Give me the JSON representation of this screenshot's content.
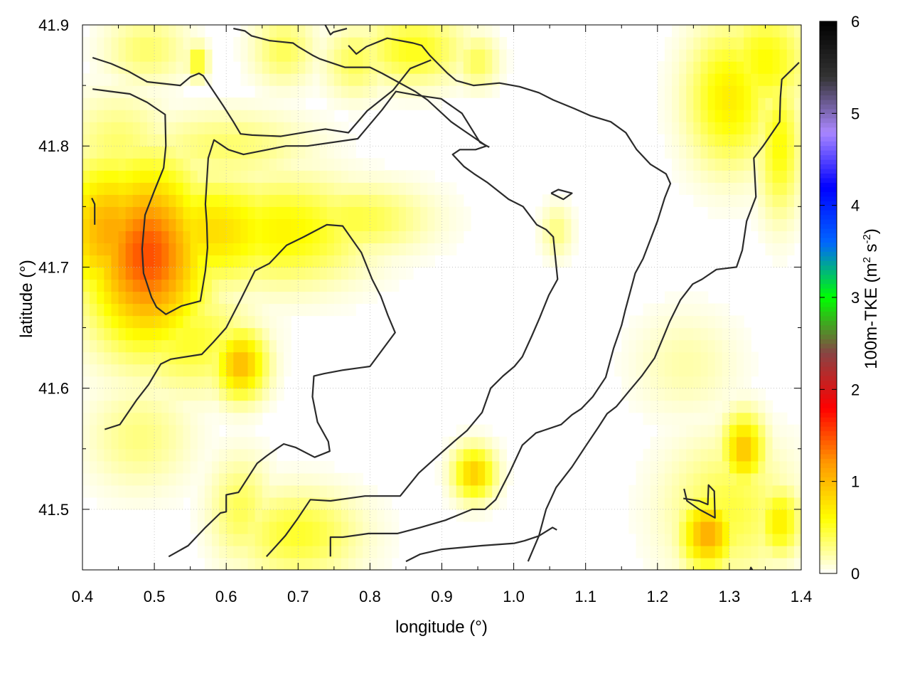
{
  "chart_data": {
    "type": "heatmap",
    "xlabel": "longitude (°)",
    "ylabel": "latitude (°)",
    "colorbar_label": "100m-TKE (m² s⁻²)",
    "colorbar_label_parts": {
      "main": "100m-TKE (m",
      "sup1": "2",
      "mid": " s",
      "sup2": "-2",
      "end": ")"
    },
    "xlim": [
      0.4,
      1.4
    ],
    "ylim": [
      41.45,
      41.9
    ],
    "x_ticks": [
      "0.4",
      "0.5",
      "0.6",
      "0.7",
      "0.8",
      "0.9",
      "1.0",
      "1.1",
      "1.2",
      "1.3",
      "1.4"
    ],
    "y_ticks": [
      "41.5",
      "41.6",
      "41.7",
      "41.8",
      "41.9"
    ],
    "colorbar_range": [
      0,
      6
    ],
    "colorbar_ticks": [
      "0",
      "1",
      "2",
      "3",
      "4",
      "5",
      "6"
    ],
    "colormap": [
      "#ffffff",
      "#ffff00",
      "#ff9900",
      "#ff0000",
      "#884444",
      "#00ff00",
      "#0066ff",
      "#0000ff",
      "#aa88ff",
      "#333333",
      "#000000"
    ],
    "grid": true,
    "hotspots": [
      {
        "x": 0.49,
        "y": 41.71,
        "value": 1.5,
        "sx": 0.055,
        "sy": 0.05
      },
      {
        "x": 0.44,
        "y": 41.73,
        "value": 1.1,
        "sx": 0.05,
        "sy": 0.04
      },
      {
        "x": 0.58,
        "y": 41.73,
        "value": 0.8,
        "sx": 0.08,
        "sy": 0.03
      },
      {
        "x": 0.68,
        "y": 41.73,
        "value": 0.65,
        "sx": 0.08,
        "sy": 0.03
      },
      {
        "x": 0.78,
        "y": 41.74,
        "value": 0.45,
        "sx": 0.07,
        "sy": 0.02
      },
      {
        "x": 0.62,
        "y": 41.62,
        "value": 1.0,
        "sx": 0.025,
        "sy": 0.02
      },
      {
        "x": 0.55,
        "y": 41.64,
        "value": 0.5,
        "sx": 0.06,
        "sy": 0.03
      },
      {
        "x": 0.6,
        "y": 41.8,
        "value": 0.35,
        "sx": 0.08,
        "sy": 0.02
      },
      {
        "x": 0.45,
        "y": 41.8,
        "value": 0.35,
        "sx": 0.05,
        "sy": 0.03
      },
      {
        "x": 0.7,
        "y": 41.48,
        "value": 0.5,
        "sx": 0.06,
        "sy": 0.025
      },
      {
        "x": 0.62,
        "y": 41.5,
        "value": 0.4,
        "sx": 0.03,
        "sy": 0.03
      },
      {
        "x": 0.86,
        "y": 41.88,
        "value": 0.55,
        "sx": 0.05,
        "sy": 0.02
      },
      {
        "x": 0.78,
        "y": 41.87,
        "value": 0.4,
        "sx": 0.03,
        "sy": 0.02
      },
      {
        "x": 0.68,
        "y": 41.88,
        "value": 0.4,
        "sx": 0.03,
        "sy": 0.02
      },
      {
        "x": 0.49,
        "y": 41.88,
        "value": 0.35,
        "sx": 0.04,
        "sy": 0.02
      },
      {
        "x": 0.56,
        "y": 41.87,
        "value": 0.6,
        "sx": 0.01,
        "sy": 0.01
      },
      {
        "x": 0.95,
        "y": 41.87,
        "value": 0.4,
        "sx": 0.02,
        "sy": 0.015
      },
      {
        "x": 0.945,
        "y": 41.53,
        "value": 0.9,
        "sx": 0.02,
        "sy": 0.015
      },
      {
        "x": 1.27,
        "y": 41.48,
        "value": 1.1,
        "sx": 0.025,
        "sy": 0.02
      },
      {
        "x": 1.32,
        "y": 41.55,
        "value": 0.95,
        "sx": 0.02,
        "sy": 0.02
      },
      {
        "x": 1.37,
        "y": 41.49,
        "value": 0.7,
        "sx": 0.02,
        "sy": 0.02
      },
      {
        "x": 1.3,
        "y": 41.5,
        "value": 0.45,
        "sx": 0.06,
        "sy": 0.04
      },
      {
        "x": 1.3,
        "y": 41.84,
        "value": 0.7,
        "sx": 0.04,
        "sy": 0.04
      },
      {
        "x": 1.35,
        "y": 41.87,
        "value": 0.6,
        "sx": 0.04,
        "sy": 0.03
      },
      {
        "x": 1.37,
        "y": 41.8,
        "value": 0.6,
        "sx": 0.02,
        "sy": 0.04
      },
      {
        "x": 1.06,
        "y": 41.73,
        "value": 0.3,
        "sx": 0.015,
        "sy": 0.015
      },
      {
        "x": 0.48,
        "y": 41.56,
        "value": 0.3,
        "sx": 0.05,
        "sy": 0.03
      },
      {
        "x": 1.24,
        "y": 41.62,
        "value": 0.2,
        "sx": 0.05,
        "sy": 0.03
      }
    ],
    "contours": [
      [
        [
          0.417,
          41.735
        ],
        [
          0.417,
          41.752
        ],
        [
          0.413,
          41.757
        ]
      ],
      [
        [
          0.414,
          41.873
        ],
        [
          0.44,
          41.868
        ],
        [
          0.463,
          41.862
        ],
        [
          0.49,
          41.853
        ],
        [
          0.536,
          41.85
        ],
        [
          0.55,
          41.857
        ],
        [
          0.562,
          41.86
        ],
        [
          0.568,
          41.858
        ],
        [
          0.596,
          41.833
        ],
        [
          0.61,
          41.82
        ],
        [
          0.62,
          41.81
        ],
        [
          0.636,
          41.809
        ],
        [
          0.676,
          41.808
        ],
        [
          0.716,
          41.812
        ],
        [
          0.738,
          41.814
        ],
        [
          0.77,
          41.811
        ],
        [
          0.796,
          41.829
        ],
        [
          0.832,
          41.846
        ],
        [
          0.856,
          41.864
        ],
        [
          0.885,
          41.871
        ]
      ],
      [
        [
          0.414,
          41.847
        ],
        [
          0.44,
          41.845
        ],
        [
          0.466,
          41.843
        ],
        [
          0.49,
          41.836
        ],
        [
          0.515,
          41.826
        ],
        [
          0.516,
          41.8
        ],
        [
          0.513,
          41.782
        ],
        [
          0.5,
          41.763
        ],
        [
          0.487,
          41.743
        ],
        [
          0.483,
          41.715
        ],
        [
          0.485,
          41.695
        ],
        [
          0.496,
          41.675
        ],
        [
          0.503,
          41.667
        ],
        [
          0.516,
          41.661
        ],
        [
          0.538,
          41.668
        ],
        [
          0.564,
          41.672
        ],
        [
          0.571,
          41.697
        ],
        [
          0.574,
          41.716
        ],
        [
          0.573,
          41.736
        ],
        [
          0.571,
          41.752
        ],
        [
          0.575,
          41.79
        ],
        [
          0.583,
          41.805
        ],
        [
          0.603,
          41.797
        ],
        [
          0.624,
          41.793
        ],
        [
          0.683,
          41.8
        ],
        [
          0.713,
          41.8
        ],
        [
          0.783,
          41.806
        ],
        [
          0.817,
          41.83
        ],
        [
          0.836,
          41.845
        ],
        [
          0.864,
          41.842
        ],
        [
          0.899,
          41.839
        ],
        [
          0.928,
          41.827
        ],
        [
          0.953,
          41.803
        ],
        [
          0.966,
          41.799
        ]
      ],
      [
        [
          0.431,
          41.566
        ],
        [
          0.452,
          41.57
        ],
        [
          0.475,
          41.59
        ],
        [
          0.492,
          41.603
        ],
        [
          0.509,
          41.62
        ],
        [
          0.523,
          41.624
        ],
        [
          0.566,
          41.628
        ],
        [
          0.582,
          41.638
        ],
        [
          0.6,
          41.65
        ],
        [
          0.62,
          41.673
        ],
        [
          0.64,
          41.697
        ],
        [
          0.66,
          41.703
        ],
        [
          0.684,
          41.718
        ],
        [
          0.708,
          41.725
        ],
        [
          0.74,
          41.735
        ],
        [
          0.762,
          41.734
        ],
        [
          0.788,
          41.712
        ],
        [
          0.803,
          41.69
        ],
        [
          0.815,
          41.676
        ],
        [
          0.825,
          41.66
        ],
        [
          0.835,
          41.646
        ],
        [
          0.8,
          41.618
        ],
        [
          0.763,
          41.615
        ],
        [
          0.736,
          41.612
        ],
        [
          0.722,
          41.61
        ],
        [
          0.72,
          41.593
        ],
        [
          0.727,
          41.572
        ],
        [
          0.742,
          41.556
        ],
        [
          0.744,
          41.548
        ],
        [
          0.723,
          41.543
        ],
        [
          0.697,
          41.551
        ],
        [
          0.68,
          41.554
        ],
        [
          0.67,
          41.55
        ],
        [
          0.656,
          41.544
        ],
        [
          0.643,
          41.538
        ],
        [
          0.617,
          41.514
        ],
        [
          0.6,
          41.512
        ],
        [
          0.6,
          41.498
        ],
        [
          0.592,
          41.497
        ],
        [
          0.571,
          41.485
        ],
        [
          0.547,
          41.47
        ],
        [
          0.52,
          41.461
        ]
      ],
      [
        [
          0.656,
          41.461
        ],
        [
          0.682,
          41.478
        ],
        [
          0.699,
          41.492
        ],
        [
          0.717,
          41.508
        ],
        [
          0.745,
          41.507
        ],
        [
          0.793,
          41.511
        ],
        [
          0.842,
          41.511
        ],
        [
          0.868,
          41.53
        ],
        [
          0.896,
          41.545
        ],
        [
          0.917,
          41.556
        ],
        [
          0.935,
          41.565
        ],
        [
          0.956,
          41.58
        ],
        [
          0.968,
          41.6
        ],
        [
          0.985,
          41.61
        ],
        [
          1.001,
          41.618
        ],
        [
          1.012,
          41.626
        ],
        [
          1.025,
          41.643
        ],
        [
          1.036,
          41.658
        ],
        [
          1.049,
          41.677
        ],
        [
          1.061,
          41.69
        ],
        [
          1.055,
          41.725
        ],
        [
          1.045,
          41.731
        ],
        [
          1.032,
          41.735
        ],
        [
          1.013,
          41.75
        ],
        [
          0.993,
          41.756
        ],
        [
          0.963,
          41.77
        ],
        [
          0.945,
          41.777
        ],
        [
          0.931,
          41.783
        ],
        [
          0.915,
          41.793
        ],
        [
          0.925,
          41.797
        ],
        [
          0.947,
          41.797
        ],
        [
          0.962,
          41.8
        ],
        [
          0.93,
          41.813
        ],
        [
          0.913,
          41.82
        ],
        [
          0.88,
          41.838
        ],
        [
          0.863,
          41.845
        ],
        [
          0.817,
          41.86
        ],
        [
          0.8,
          41.865
        ],
        [
          0.765,
          41.865
        ],
        [
          0.73,
          41.872
        ],
        [
          0.72,
          41.875
        ],
        [
          0.7,
          41.882
        ],
        [
          0.693,
          41.885
        ],
        [
          0.66,
          41.887
        ],
        [
          0.635,
          41.891
        ],
        [
          0.626,
          41.895
        ],
        [
          0.61,
          41.897
        ]
      ],
      [
        [
          0.745,
          41.461
        ],
        [
          0.745,
          41.477
        ],
        [
          0.762,
          41.477
        ],
        [
          0.798,
          41.48
        ],
        [
          0.838,
          41.48
        ],
        [
          0.87,
          41.485
        ],
        [
          0.905,
          41.491
        ],
        [
          0.942,
          41.5
        ],
        [
          0.96,
          41.5
        ],
        [
          0.975,
          41.508
        ],
        [
          0.994,
          41.53
        ],
        [
          1.012,
          41.553
        ],
        [
          1.031,
          41.563
        ],
        [
          1.066,
          41.57
        ],
        [
          1.081,
          41.578
        ],
        [
          1.094,
          41.583
        ],
        [
          1.11,
          41.593
        ],
        [
          1.128,
          41.609
        ],
        [
          1.139,
          41.633
        ],
        [
          1.15,
          41.652
        ],
        [
          1.155,
          41.664
        ],
        [
          1.169,
          41.695
        ],
        [
          1.18,
          41.707
        ],
        [
          1.2,
          41.738
        ],
        [
          1.21,
          41.757
        ],
        [
          1.218,
          41.769
        ],
        [
          1.212,
          41.777
        ],
        [
          1.19,
          41.785
        ],
        [
          1.171,
          41.797
        ],
        [
          1.156,
          41.811
        ],
        [
          1.135,
          41.82
        ],
        [
          1.107,
          41.825
        ],
        [
          1.084,
          41.831
        ],
        [
          1.055,
          41.838
        ],
        [
          1.035,
          41.844
        ],
        [
          1.008,
          41.849
        ],
        [
          0.98,
          41.852
        ],
        [
          0.944,
          41.85
        ],
        [
          0.92,
          41.854
        ],
        [
          0.908,
          41.86
        ],
        [
          0.883,
          41.875
        ],
        [
          0.872,
          41.883
        ],
        [
          0.86,
          41.885
        ],
        [
          0.824,
          41.889
        ],
        [
          0.795,
          41.882
        ],
        [
          0.781,
          41.876
        ],
        [
          0.77,
          41.883
        ]
      ],
      [
        [
          1.02,
          41.457
        ],
        [
          1.035,
          41.478
        ],
        [
          1.045,
          41.5
        ],
        [
          1.059,
          41.518
        ],
        [
          1.081,
          41.535
        ],
        [
          1.101,
          41.553
        ],
        [
          1.118,
          41.568
        ],
        [
          1.13,
          41.579
        ],
        [
          1.143,
          41.585
        ],
        [
          1.161,
          41.598
        ],
        [
          1.178,
          41.61
        ],
        [
          1.196,
          41.625
        ],
        [
          1.208,
          41.642
        ],
        [
          1.217,
          41.655
        ],
        [
          1.232,
          41.673
        ],
        [
          1.249,
          41.686
        ],
        [
          1.262,
          41.69
        ],
        [
          1.282,
          41.698
        ],
        [
          1.31,
          41.7
        ],
        [
          1.318,
          41.714
        ],
        [
          1.324,
          41.738
        ],
        [
          1.337,
          41.758
        ],
        [
          1.335,
          41.78
        ],
        [
          1.334,
          41.79
        ],
        [
          1.347,
          41.8
        ],
        [
          1.37,
          41.82
        ],
        [
          1.371,
          41.84
        ],
        [
          1.373,
          41.855
        ],
        [
          1.397,
          41.869
        ]
      ],
      [
        [
          0.85,
          41.457
        ],
        [
          0.87,
          41.463
        ],
        [
          0.9,
          41.467
        ],
        [
          0.955,
          41.47
        ],
        [
          1.001,
          41.472
        ],
        [
          1.015,
          41.474
        ],
        [
          1.035,
          41.478
        ],
        [
          1.054,
          41.485
        ],
        [
          1.06,
          41.483
        ]
      ],
      [
        [
          0.735,
          41.903
        ],
        [
          0.745,
          41.892
        ],
        [
          0.749,
          41.894
        ],
        [
          0.768,
          41.897
        ]
      ],
      [
        [
          1.237,
          41.517
        ],
        [
          1.241,
          41.507
        ],
        [
          1.258,
          41.5
        ],
        [
          1.28,
          41.493
        ],
        [
          1.279,
          41.515
        ],
        [
          1.271,
          41.52
        ],
        [
          1.27,
          41.504
        ],
        [
          1.258,
          41.507
        ],
        [
          1.236,
          41.509
        ]
      ],
      [
        [
          1.052,
          41.761
        ],
        [
          1.062,
          41.764
        ],
        [
          1.081,
          41.761
        ],
        [
          1.069,
          41.756
        ],
        [
          1.052,
          41.761
        ]
      ],
      [
        [
          1.328,
          41.448
        ],
        [
          1.33,
          41.452
        ],
        [
          1.333,
          41.449
        ]
      ]
    ]
  }
}
